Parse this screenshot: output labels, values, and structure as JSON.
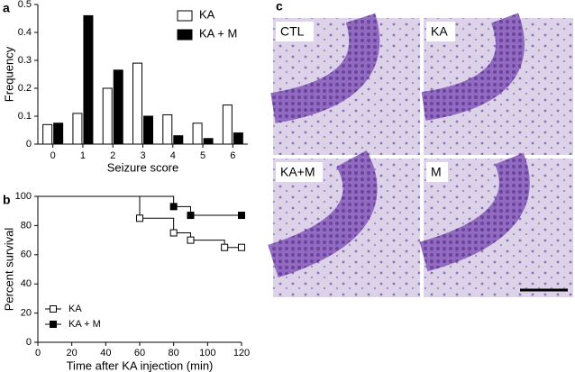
{
  "chart_data": [
    {
      "type": "bar",
      "panel": "a",
      "xlabel": "Seizure score",
      "ylabel": "Frequency",
      "categories": [
        "0",
        "1",
        "2",
        "3",
        "4",
        "5",
        "6"
      ],
      "series": [
        {
          "name": "KA",
          "color": "#ffffff",
          "values": [
            0.07,
            0.11,
            0.2,
            0.29,
            0.105,
            0.075,
            0.14
          ]
        },
        {
          "name": "KA + M",
          "color": "#000000",
          "values": [
            0.075,
            0.46,
            0.265,
            0.1,
            0.03,
            0.02,
            0.04
          ]
        }
      ],
      "ylim": [
        0,
        0.5
      ],
      "yticks": [
        0,
        0.1,
        0.2,
        0.3,
        0.4,
        0.5
      ],
      "legend": "upper right"
    },
    {
      "type": "line",
      "step": true,
      "panel": "b",
      "xlabel": "Time after KA injection (min)",
      "ylabel": "Percent survival",
      "series": [
        {
          "name": "KA",
          "color": "#000000",
          "marker": "open-square",
          "x": [
            0,
            60,
            80,
            90,
            110,
            120
          ],
          "values": [
            100,
            85,
            75,
            70,
            65,
            65
          ]
        },
        {
          "name": "KA + M",
          "color": "#000000",
          "marker": "filled-square",
          "x": [
            0,
            80,
            90,
            120
          ],
          "values": [
            100,
            93,
            87,
            87
          ]
        }
      ],
      "xlim": [
        0,
        120
      ],
      "xticks": [
        0,
        20,
        40,
        60,
        80,
        100,
        120
      ],
      "ylim": [
        0,
        100
      ],
      "yticks": [
        0,
        20,
        40,
        60,
        80,
        100
      ],
      "legend": "lower left"
    }
  ],
  "panel_c": {
    "panel": "c",
    "images": [
      "CTL",
      "KA",
      "KA+M",
      "M"
    ]
  }
}
